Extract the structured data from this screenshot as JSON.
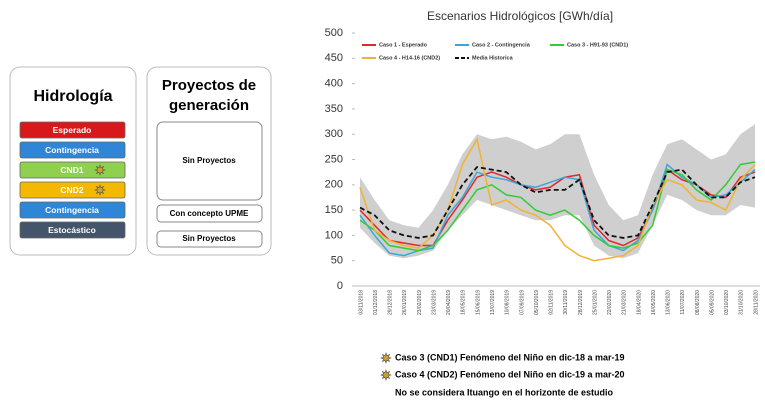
{
  "panels": [
    {
      "title": "Hidrología",
      "items": [
        {
          "label": "Esperado",
          "color": "#d7191c"
        },
        {
          "label": "Contingencia",
          "color": "#2f86d6"
        },
        {
          "label": "CND1",
          "color": "#8fd14f",
          "star": true
        },
        {
          "label": "CND2",
          "color": "#f5b800",
          "star": true
        },
        {
          "label": "Contingencia",
          "color": "#2f86d6"
        },
        {
          "label": "Estocástico",
          "color": "#44546a"
        }
      ]
    },
    {
      "title_lines": [
        "Proyectos de",
        "generación"
      ],
      "items": [
        "Sin Proyectos",
        "Con concepto UPME",
        "Sin Proyectos"
      ]
    }
  ],
  "notes": [
    "Caso 3 (CND1) Fenómeno del Niño en dic-18 a mar-19",
    "Caso 4 (CND2) Fenómeno del Niño en dic-19 a mar-20",
    "No se considera Ituango en el horizonte de estudio"
  ],
  "chart_data": {
    "type": "line",
    "title": "Escenarios Hidrológicos [GWh/día]",
    "categories": [
      "03/11/2018",
      "01/12/2018",
      "29/12/2018",
      "26/01/2019",
      "23/02/2019",
      "23/03/2019",
      "20/04/2019",
      "18/05/2019",
      "15/06/2019",
      "13/07/2019",
      "10/08/2019",
      "07/09/2019",
      "05/10/2019",
      "02/11/2019",
      "30/11/2019",
      "28/12/2019",
      "25/01/2020",
      "22/02/2020",
      "21/03/2020",
      "18/04/2020",
      "16/05/2020",
      "13/06/2020",
      "11/07/2020",
      "08/08/2020",
      "05/09/2020",
      "03/10/2020",
      "31/10/2020",
      "28/11/2020"
    ],
    "band": {
      "color": "#cfcfcf",
      "upper": [
        215,
        170,
        130,
        120,
        115,
        150,
        200,
        260,
        300,
        290,
        295,
        285,
        270,
        280,
        300,
        300,
        220,
        160,
        130,
        140,
        220,
        280,
        290,
        270,
        250,
        260,
        300,
        320
      ],
      "lower": [
        115,
        85,
        60,
        55,
        60,
        70,
        110,
        140,
        170,
        160,
        150,
        140,
        130,
        130,
        140,
        140,
        80,
        60,
        55,
        65,
        120,
        180,
        170,
        150,
        140,
        140,
        160,
        155
      ]
    },
    "series": [
      {
        "name": "Caso 1 - Esperado",
        "color": "#e0282e",
        "values": [
          150,
          120,
          90,
          85,
          80,
          80,
          130,
          170,
          215,
          225,
          215,
          200,
          190,
          195,
          215,
          220,
          120,
          90,
          80,
          95,
          150,
          230,
          210,
          200,
          180,
          175,
          215,
          225
        ]
      },
      {
        "name": "Caso 2 - Contingencia",
        "color": "#3aa7dc",
        "values": [
          140,
          100,
          65,
          60,
          70,
          75,
          140,
          175,
          225,
          215,
          210,
          200,
          195,
          205,
          215,
          210,
          110,
          80,
          70,
          90,
          150,
          240,
          215,
          200,
          175,
          180,
          205,
          230
        ]
      },
      {
        "name": "Caso 3 - H91-93 (CND1)",
        "color": "#33cc33",
        "values": [
          130,
          110,
          80,
          75,
          70,
          80,
          110,
          150,
          190,
          200,
          180,
          175,
          150,
          140,
          150,
          130,
          100,
          80,
          75,
          85,
          120,
          230,
          220,
          190,
          170,
          200,
          240,
          245
        ]
      },
      {
        "name": "Caso 4 - H14-16 (CND2)",
        "color": "#f2b233",
        "values": [
          195,
          110,
          90,
          80,
          75,
          100,
          150,
          240,
          290,
          160,
          170,
          150,
          140,
          120,
          80,
          60,
          50,
          55,
          60,
          80,
          160,
          210,
          200,
          170,
          165,
          150,
          210,
          240
        ]
      },
      {
        "name": "Media Historica",
        "color": "#111111",
        "dash": true,
        "values": [
          155,
          140,
          110,
          100,
          95,
          100,
          150,
          200,
          235,
          230,
          225,
          200,
          185,
          190,
          190,
          210,
          130,
          100,
          95,
          100,
          160,
          225,
          230,
          200,
          175,
          175,
          205,
          215
        ]
      }
    ],
    "ylim": [
      0,
      500
    ],
    "yticks": [
      0,
      50,
      100,
      150,
      200,
      250,
      300,
      350,
      400,
      450,
      500
    ],
    "grid": false
  }
}
